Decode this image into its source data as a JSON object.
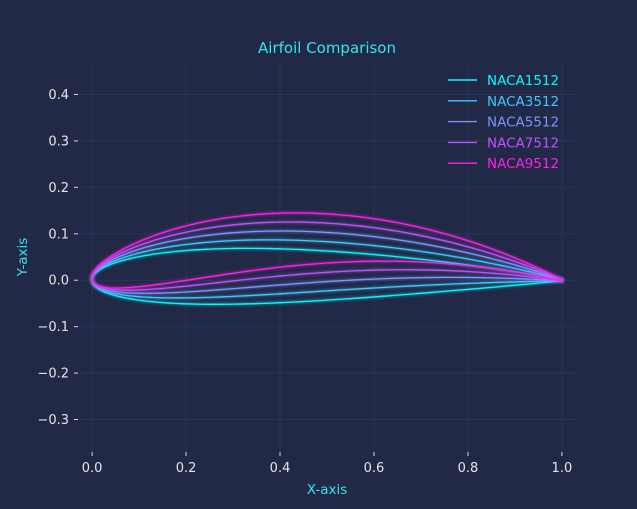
{
  "chart_data": {
    "type": "line",
    "title": "Airfoil Comparison",
    "xlabel": "X-axis",
    "ylabel": "Y-axis",
    "xlim": [
      -0.03,
      1.03
    ],
    "ylim": [
      -0.37,
      0.47
    ],
    "xticks": [
      0.0,
      0.2,
      0.4,
      0.6,
      0.8,
      1.0
    ],
    "xtick_labels": [
      "0.0",
      "0.2",
      "0.4",
      "0.6",
      "0.8",
      "1.0"
    ],
    "yticks": [
      -0.3,
      -0.2,
      -0.1,
      0.0,
      0.1,
      0.2,
      0.3,
      0.4
    ],
    "ytick_labels": [
      "−0.3",
      "−0.2",
      "−0.1",
      "0.0",
      "0.1",
      "0.2",
      "0.3",
      "0.4"
    ],
    "grid": true,
    "legend_position": "top-right",
    "series": [
      {
        "name": "NACA1512",
        "color": "#08F7FE",
        "max_camber": 0.01,
        "camber_position": 0.5,
        "thickness": 0.12
      },
      {
        "name": "NACA3512",
        "color": "#3FC7FE",
        "max_camber": 0.03,
        "camber_position": 0.5,
        "thickness": 0.12
      },
      {
        "name": "NACA5512",
        "color": "#7F93FE",
        "max_camber": 0.05,
        "camber_position": 0.5,
        "thickness": 0.12
      },
      {
        "name": "NACA7512",
        "color": "#BF52FE",
        "max_camber": 0.07,
        "camber_position": 0.5,
        "thickness": 0.12
      },
      {
        "name": "NACA9512",
        "color": "#FE1FEA",
        "max_camber": 0.09,
        "camber_position": 0.5,
        "thickness": 0.12
      }
    ]
  },
  "colors": {
    "background": "#212946",
    "grid": "#2A3459",
    "text": "#e6e6e6",
    "accent": "#2fe6f2"
  }
}
